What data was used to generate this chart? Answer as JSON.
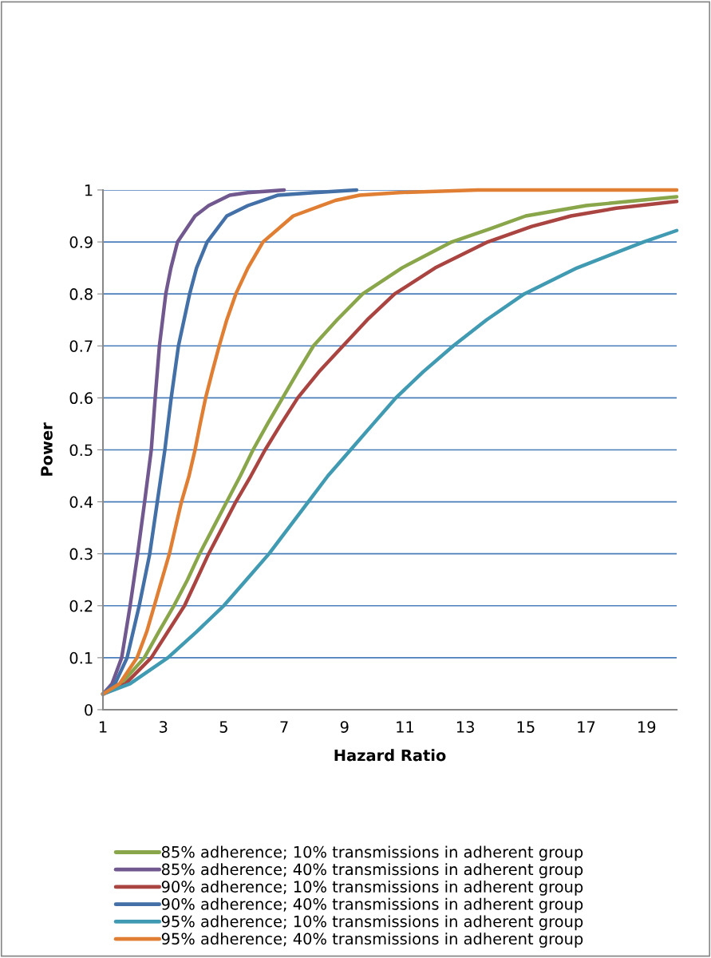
{
  "chart_data": {
    "type": "line",
    "xlabel": "Hazard Ratio",
    "ylabel": "Power",
    "xlim": [
      1,
      20
    ],
    "xticks": [
      1,
      3,
      5,
      7,
      9,
      11,
      13,
      15,
      17,
      19
    ],
    "ylim": [
      0,
      1
    ],
    "yticks": [
      0,
      0.1,
      0.2,
      0.3,
      0.4,
      0.5,
      0.6,
      0.7,
      0.8,
      0.9,
      1
    ],
    "grid": "y",
    "legend": "bottom",
    "marker": "none",
    "line_style": "solid",
    "series": [
      {
        "name": "85% adherence; 10% transmissions in adherent group",
        "color": "#8aa64a",
        "x": [
          1,
          1.6,
          2.37,
          2.85,
          3.35,
          3.8,
          4.2,
          4.65,
          5.1,
          5.55,
          5.97,
          6.45,
          6.95,
          7.45,
          7.97,
          8.75,
          9.6,
          10.9,
          12.55,
          13.8,
          15,
          17,
          20
        ],
        "values": [
          0.03,
          0.05,
          0.1,
          0.15,
          0.2,
          0.25,
          0.3,
          0.35,
          0.4,
          0.45,
          0.5,
          0.55,
          0.6,
          0.65,
          0.7,
          0.75,
          0.8,
          0.85,
          0.9,
          0.925,
          0.95,
          0.97,
          0.987
        ]
      },
      {
        "name": "85% adherence; 40% transmissions in adherent group",
        "color": "#71588f",
        "x": [
          1,
          1.3,
          1.62,
          1.9,
          2.15,
          2.38,
          2.6,
          2.73,
          2.87,
          3.08,
          3.25,
          3.47,
          4.05,
          4.5,
          5.2,
          5.8,
          7
        ],
        "values": [
          0.03,
          0.05,
          0.1,
          0.2,
          0.3,
          0.4,
          0.5,
          0.6,
          0.7,
          0.8,
          0.85,
          0.9,
          0.95,
          0.97,
          0.99,
          0.995,
          1
        ]
      },
      {
        "name": "90% adherence; 10% transmissions in adherent group",
        "color": "#a94441",
        "x": [
          1,
          1.75,
          2.6,
          3.15,
          3.7,
          4.1,
          4.5,
          4.95,
          5.4,
          5.9,
          6.37,
          6.9,
          7.45,
          8.15,
          8.95,
          9.75,
          10.66,
          12.0,
          13.74,
          15.2,
          16.5,
          18,
          20
        ],
        "values": [
          0.03,
          0.05,
          0.1,
          0.15,
          0.2,
          0.25,
          0.3,
          0.35,
          0.4,
          0.45,
          0.5,
          0.55,
          0.6,
          0.65,
          0.7,
          0.75,
          0.8,
          0.85,
          0.9,
          0.93,
          0.95,
          0.965,
          0.978
        ]
      },
      {
        "name": "90% adherence; 40% transmissions in adherent group",
        "color": "#4470a8",
        "x": [
          1,
          1.4,
          1.8,
          2.2,
          2.55,
          2.8,
          3.05,
          3.26,
          3.5,
          3.87,
          4.1,
          4.45,
          5.1,
          5.8,
          6.8,
          8,
          9.4
        ],
        "values": [
          0.03,
          0.05,
          0.1,
          0.2,
          0.3,
          0.4,
          0.5,
          0.6,
          0.7,
          0.8,
          0.85,
          0.9,
          0.95,
          0.97,
          0.99,
          0.995,
          1
        ]
      },
      {
        "name": "95% adherence; 10% transmissions in adherent group",
        "color": "#3f9ab2",
        "x": [
          1,
          1.9,
          3.15,
          4.1,
          5.0,
          5.75,
          6.5,
          7.15,
          7.8,
          8.45,
          9.2,
          9.95,
          10.7,
          11.6,
          12.6,
          13.7,
          14.95,
          16.7,
          18.9,
          20
        ],
        "values": [
          0.03,
          0.05,
          0.1,
          0.15,
          0.2,
          0.25,
          0.3,
          0.35,
          0.4,
          0.45,
          0.5,
          0.55,
          0.6,
          0.65,
          0.7,
          0.75,
          0.8,
          0.85,
          0.9,
          0.922
        ]
      },
      {
        "name": "95% adherence; 40% transmissions in adherent group",
        "color": "#e07f33",
        "x": [
          1,
          1.55,
          2.13,
          2.45,
          2.7,
          2.95,
          3.2,
          3.4,
          3.6,
          3.85,
          4.05,
          4.22,
          4.4,
          4.62,
          4.85,
          5.1,
          5.4,
          5.8,
          6.3,
          7.3,
          8.7,
          9.5,
          10.8,
          13.4,
          20
        ],
        "values": [
          0.03,
          0.05,
          0.1,
          0.15,
          0.2,
          0.25,
          0.3,
          0.35,
          0.4,
          0.45,
          0.5,
          0.55,
          0.6,
          0.65,
          0.7,
          0.75,
          0.8,
          0.85,
          0.9,
          0.95,
          0.98,
          0.99,
          0.995,
          1,
          1
        ]
      }
    ]
  }
}
